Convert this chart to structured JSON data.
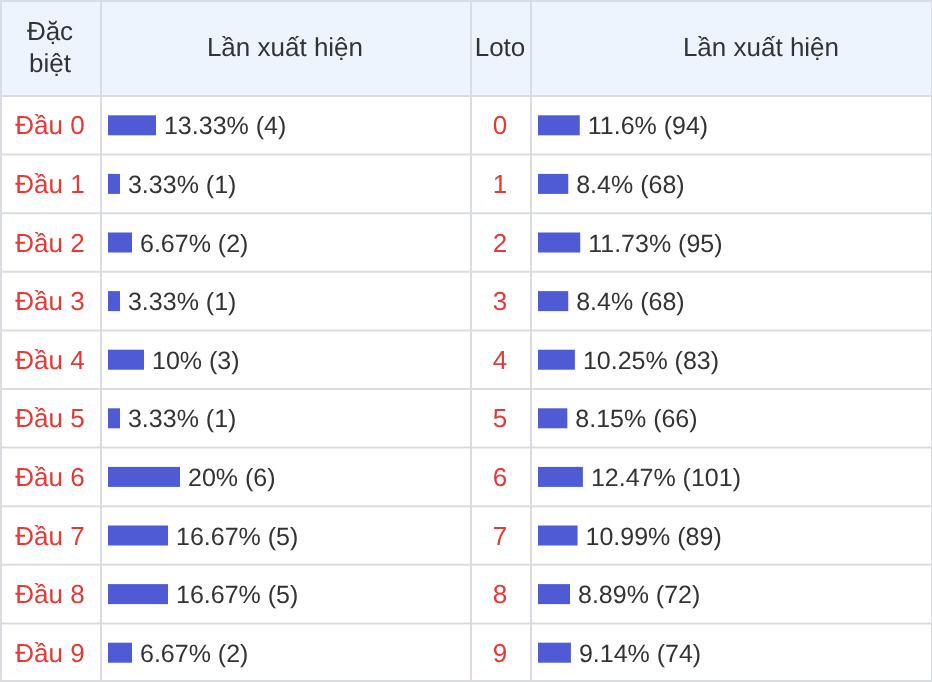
{
  "chart_data": [
    {
      "type": "bar",
      "orientation": "horizontal",
      "xlabel": "Lần xuất hiện",
      "ylabel": "Đặc biệt",
      "color": "#4f5bd5",
      "categories": [
        "Đầu 0",
        "Đầu 1",
        "Đầu 2",
        "Đầu 3",
        "Đầu 4",
        "Đầu 5",
        "Đầu 6",
        "Đầu 7",
        "Đầu 8",
        "Đầu 9"
      ],
      "values": [
        13.33,
        3.33,
        6.67,
        3.33,
        10,
        3.33,
        20,
        16.67,
        16.67,
        6.67
      ],
      "value_labels": [
        "13.33% (4)",
        "3.33% (1)",
        "6.67% (2)",
        "3.33% (1)",
        "10% (3)",
        "3.33% (1)",
        "20% (6)",
        "16.67% (5)",
        "16.67% (5)",
        "6.67% (2)"
      ]
    },
    {
      "type": "bar",
      "orientation": "horizontal",
      "xlabel": "Lần xuất hiện",
      "ylabel": "Loto",
      "color": "#4f5bd5",
      "categories": [
        "0",
        "1",
        "2",
        "3",
        "4",
        "5",
        "6",
        "7",
        "8",
        "9"
      ],
      "values": [
        11.6,
        8.4,
        11.73,
        8.4,
        10.25,
        8.15,
        12.47,
        10.99,
        8.89,
        9.14
      ],
      "value_labels": [
        "11.6% (94)",
        "8.4% (68)",
        "11.73% (95)",
        "8.4% (68)",
        "10.25% (83)",
        "8.15% (66)",
        "12.47% (101)",
        "10.99% (89)",
        "8.89% (72)",
        "9.14% (74)"
      ]
    }
  ]
}
